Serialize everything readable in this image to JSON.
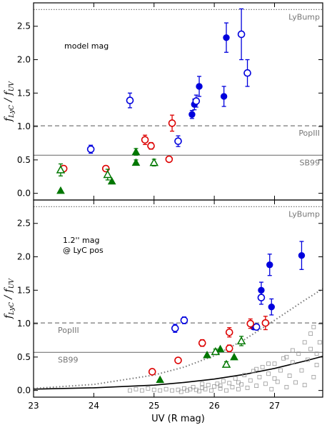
{
  "chart_data": {
    "type": "scatter",
    "xlabel": "UV (R mag)",
    "ylabel": "f",
    "ylabel_sub1": "LyC",
    "ylabel_sub2": "UV",
    "ylabel_sep": " / ",
    "xlim": [
      23.0,
      27.8
    ],
    "ylim": [
      -0.1,
      2.85
    ],
    "x_ticks": [
      23,
      24,
      25,
      26,
      27
    ],
    "y_ticks": [
      0.0,
      0.5,
      1.0,
      1.5,
      2.0,
      2.5
    ],
    "y_tick_labels": [
      "0.0",
      "0.5",
      "1.0",
      "1.5",
      "2.0",
      "2.5"
    ],
    "x_tick_labels": [
      "23",
      "24",
      "25",
      "26",
      "27"
    ],
    "colors": {
      "blue": "#0000dd",
      "red": "#dd0000",
      "green": "#007700",
      "gray": "#777777"
    },
    "reference_lines": [
      {
        "label": "LyBump",
        "y": 2.75,
        "style": "dotted"
      },
      {
        "label": "PopIII",
        "y": 1.01,
        "style": "dashed"
      },
      {
        "label": "SB99",
        "y": 0.57,
        "style": "solid"
      }
    ],
    "panels": [
      {
        "annotation": [
          "model mag"
        ],
        "series": [
          {
            "color": "blue",
            "marker": "circle-filled",
            "points": [
              [
                25.63,
                1.18,
                0.06,
                0
              ],
              [
                25.67,
                1.33,
                0.08,
                0
              ],
              [
                25.75,
                1.6,
                0.15,
                0
              ],
              [
                26.16,
                1.45,
                0.15,
                0
              ],
              [
                26.2,
                2.33,
                0.22,
                0
              ]
            ]
          },
          {
            "color": "blue",
            "marker": "circle-open",
            "points": [
              [
                23.95,
                0.66,
                0.06,
                0
              ],
              [
                24.6,
                1.39,
                0.11,
                0
              ],
              [
                25.4,
                0.78,
                0.08,
                0
              ],
              [
                25.7,
                1.38,
                0.09,
                0
              ],
              [
                26.45,
                2.38,
                0.38,
                0
              ],
              [
                26.55,
                1.8,
                0.2,
                0.06
              ]
            ]
          },
          {
            "color": "red",
            "marker": "circle-open",
            "points": [
              [
                23.5,
                0.37,
                0,
                0
              ],
              [
                24.2,
                0.37,
                0,
                0
              ],
              [
                24.85,
                0.8,
                0.07,
                0
              ],
              [
                24.95,
                0.71,
                0.05,
                0
              ],
              [
                25.25,
                0.51,
                0.03,
                0
              ],
              [
                25.3,
                1.05,
                0.12,
                0.06
              ]
            ]
          },
          {
            "color": "green",
            "marker": "triangle-filled",
            "points": [
              [
                23.45,
                0.04,
                0,
                0
              ],
              [
                24.3,
                0.18,
                0,
                0
              ],
              [
                24.7,
                0.46,
                0.04,
                0
              ],
              [
                24.7,
                0.62,
                0.05,
                0
              ]
            ]
          },
          {
            "color": "green",
            "marker": "triangle-open",
            "points": [
              [
                23.45,
                0.35,
                0.09,
                0
              ],
              [
                24.23,
                0.28,
                0.08,
                0
              ],
              [
                25.0,
                0.46,
                0.05,
                0
              ]
            ]
          }
        ]
      },
      {
        "annotation": [
          "1.2'' mag",
          "@ LyC pos"
        ],
        "series": [
          {
            "color": "blue",
            "marker": "circle-filled",
            "points": [
              [
                26.65,
                0.95,
                0,
                0
              ],
              [
                26.78,
                1.5,
                0.12,
                0
              ],
              [
                26.92,
                1.88,
                0.16,
                0
              ],
              [
                26.95,
                1.25,
                0.12,
                0
              ],
              [
                27.45,
                2.02,
                0.21,
                0
              ]
            ]
          },
          {
            "color": "blue",
            "marker": "circle-open",
            "points": [
              [
                25.35,
                0.93,
                0.06,
                0
              ],
              [
                25.5,
                1.05,
                0.05,
                0
              ],
              [
                26.7,
                0.95,
                0.04,
                0
              ],
              [
                26.78,
                1.39,
                0.1,
                0
              ]
            ]
          },
          {
            "color": "red",
            "marker": "circle-open",
            "points": [
              [
                24.97,
                0.28,
                0,
                0
              ],
              [
                25.4,
                0.45,
                0,
                0
              ],
              [
                25.8,
                0.71,
                0.05,
                0
              ],
              [
                26.25,
                0.87,
                0.07,
                0
              ],
              [
                26.25,
                0.63,
                0.05,
                0
              ],
              [
                26.6,
                1.0,
                0.07,
                0
              ],
              [
                26.85,
                1.01,
                0.1,
                0
              ]
            ]
          },
          {
            "color": "green",
            "marker": "triangle-filled",
            "points": [
              [
                25.1,
                0.16,
                0,
                0
              ],
              [
                25.88,
                0.53,
                0,
                0
              ],
              [
                26.1,
                0.62,
                0,
                0
              ],
              [
                26.33,
                0.5,
                0,
                0
              ]
            ]
          },
          {
            "color": "green",
            "marker": "triangle-open",
            "points": [
              [
                26.02,
                0.58,
                0.04,
                0
              ],
              [
                26.2,
                0.39,
                0.04,
                0
              ],
              [
                26.45,
                0.74,
                0.07,
                0
              ]
            ]
          }
        ],
        "curves": [
          {
            "style": "solid",
            "points": [
              [
                23.0,
                0.02
              ],
              [
                24.0,
                0.04
              ],
              [
                25.0,
                0.08
              ],
              [
                25.5,
                0.12
              ],
              [
                26.0,
                0.17
              ],
              [
                26.5,
                0.24
              ],
              [
                27.0,
                0.33
              ],
              [
                27.5,
                0.44
              ],
              [
                27.8,
                0.51
              ]
            ]
          },
          {
            "style": "dotted",
            "points": [
              [
                23.0,
                0.03
              ],
              [
                24.0,
                0.09
              ],
              [
                25.0,
                0.23
              ],
              [
                25.5,
                0.35
              ],
              [
                26.0,
                0.52
              ],
              [
                26.5,
                0.76
              ],
              [
                27.0,
                1.05
              ],
              [
                27.5,
                1.35
              ],
              [
                27.8,
                1.52
              ]
            ]
          }
        ],
        "scatter_squares": [
          [
            25.1,
            0.0
          ],
          [
            25.2,
            0.02
          ],
          [
            25.3,
            0.0
          ],
          [
            25.4,
            0.01
          ],
          [
            25.45,
            -0.02
          ],
          [
            25.5,
            0.03
          ],
          [
            25.55,
            0.0
          ],
          [
            25.6,
            0.02
          ],
          [
            25.65,
            0.05
          ],
          [
            25.7,
            0.01
          ],
          [
            25.75,
            -0.01
          ],
          [
            25.8,
            0.04
          ],
          [
            25.85,
            0.02
          ],
          [
            25.9,
            0.08
          ],
          [
            25.95,
            0.0
          ],
          [
            26.0,
            0.06
          ],
          [
            26.05,
            0.1
          ],
          [
            26.1,
            0.03
          ],
          [
            26.15,
            0.14
          ],
          [
            26.2,
            0.0
          ],
          [
            26.25,
            0.11
          ],
          [
            26.3,
            0.05
          ],
          [
            26.35,
            0.18
          ],
          [
            26.4,
            0.02
          ],
          [
            26.45,
            0.09
          ],
          [
            26.5,
            0.23
          ],
          [
            26.55,
            0.04
          ],
          [
            26.6,
            0.15
          ],
          [
            26.65,
            0.29
          ],
          [
            26.7,
            0.07
          ],
          [
            26.75,
            0.2
          ],
          [
            26.8,
            0.35
          ],
          [
            26.85,
            0.1
          ],
          [
            26.9,
            0.25
          ],
          [
            26.95,
            0.02
          ],
          [
            27.0,
            0.4
          ],
          [
            27.05,
            0.13
          ],
          [
            27.1,
            0.3
          ],
          [
            27.15,
            0.48
          ],
          [
            27.2,
            0.05
          ],
          [
            27.25,
            0.22
          ],
          [
            27.3,
            0.42
          ],
          [
            27.35,
            0.12
          ],
          [
            27.4,
            0.55
          ],
          [
            27.45,
            0.3
          ],
          [
            27.5,
            0.08
          ],
          [
            27.55,
            0.46
          ],
          [
            27.6,
            0.62
          ],
          [
            27.65,
            0.2
          ],
          [
            27.7,
            0.38
          ],
          [
            27.75,
            0.72
          ],
          [
            27.6,
            0.85
          ],
          [
            27.7,
            0.55
          ],
          [
            27.3,
            0.6
          ],
          [
            27.0,
            0.18
          ],
          [
            26.7,
            0.32
          ],
          [
            26.4,
            0.12
          ],
          [
            26.1,
            0.07
          ],
          [
            25.8,
            0.1
          ],
          [
            27.5,
            0.72
          ],
          [
            27.2,
            0.5
          ],
          [
            26.9,
            0.4
          ],
          [
            27.65,
            0.95
          ],
          [
            24.8,
            0.0
          ],
          [
            24.9,
            0.03
          ],
          [
            25.0,
            0.01
          ],
          [
            24.6,
            0.0
          ],
          [
            24.7,
            0.02
          ]
        ]
      }
    ]
  }
}
